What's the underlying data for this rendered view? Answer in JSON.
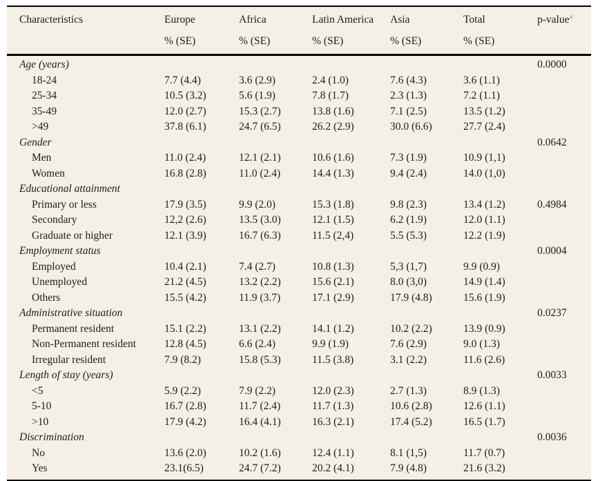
{
  "page": {
    "background": "#ffffff",
    "table_background": "#f5f0e5",
    "text_color": "#1c1c1c",
    "superscript_color": "#4aa3d9"
  },
  "table": {
    "header": {
      "characteristics": "Characteristics",
      "columns": [
        {
          "name": "Europe",
          "sub": "% (SE)"
        },
        {
          "name": "Africa",
          "sub": "% (SE)"
        },
        {
          "name": "Latin America",
          "sub": "% (SE)"
        },
        {
          "name": "Asia",
          "sub": "% (SE)"
        },
        {
          "name": "Total",
          "sub": "% (SE)"
        }
      ],
      "p_value": {
        "label": "p-value",
        "superscript": "a"
      }
    },
    "rows": [
      {
        "type": "category",
        "label": "Age (years)",
        "values": [
          "",
          "",
          "",
          "",
          ""
        ],
        "p": "0.0000"
      },
      {
        "type": "item",
        "label": "18-24",
        "values": [
          "7.7 (4.4)",
          "3.6 (2.9)",
          "2.4 (1.0)",
          "7.6 (4.3)",
          "3.6 (1.1)"
        ],
        "p": ""
      },
      {
        "type": "item",
        "label": "25-34",
        "values": [
          "10.5 (3.2)",
          "5.6 (1.9)",
          "7.8 (1.7)",
          "2.3 (1.3)",
          "7.2 (1.1)"
        ],
        "p": ""
      },
      {
        "type": "item",
        "label": "35-49",
        "values": [
          "12.0 (2.7)",
          "15.3 (2.7)",
          "13.8 (1.6)",
          "7.1 (2.5)",
          "13.5 (1.2)"
        ],
        "p": ""
      },
      {
        "type": "item",
        "label": ">49",
        "values": [
          "37.8 (6.1)",
          "24.7 (6.5)",
          "26.2 (2.9)",
          "30.0 (6.6)",
          "27.7 (2.4)"
        ],
        "p": ""
      },
      {
        "type": "category",
        "label": "Gender",
        "values": [
          "",
          "",
          "",
          "",
          ""
        ],
        "p": "0.0642"
      },
      {
        "type": "item",
        "label": "Men",
        "values": [
          "11.0 (2.4)",
          "12.1 (2.1)",
          "10.6 (1.6)",
          "7.3 (1.9)",
          "10.9 (1,1)"
        ],
        "p": ""
      },
      {
        "type": "item",
        "label": "Women",
        "values": [
          "16.8 (2.8)",
          "11.0 (2.4)",
          "14.4 (1.3)",
          "9.4 (2.4)",
          "14.0 (1,0)"
        ],
        "p": ""
      },
      {
        "type": "category",
        "label": "Educational attainment",
        "values": [
          "",
          "",
          "",
          "",
          ""
        ],
        "p": ""
      },
      {
        "type": "item",
        "label": "Primary or less",
        "values": [
          "17.9 (3.5)",
          "9.9 (2.0)",
          "15.3 (1.8)",
          "9.8 (2.3)",
          "13.4 (1.2)"
        ],
        "p": "0.4984"
      },
      {
        "type": "item",
        "label": "Secondary",
        "values": [
          "12,2 (2.6)",
          "13.5 (3.0)",
          "12.1 (1.5)",
          "6.2 (1.9)",
          "12.0 (1.1)"
        ],
        "p": ""
      },
      {
        "type": "item",
        "label": "Graduate or higher",
        "values": [
          "12.1 (3.9)",
          "16.7 (6.3)",
          "11.5 (2,4)",
          "5.5 (5.3)",
          "12.2 (1.9)"
        ],
        "p": ""
      },
      {
        "type": "category",
        "label": "Employment status",
        "values": [
          "",
          "",
          "",
          "",
          ""
        ],
        "p": "0.0004"
      },
      {
        "type": "item",
        "label": "Employed",
        "values": [
          "10.4 (2.1)",
          "7.4 (2.7)",
          "10.8 (1.3)",
          "5,3 (1,7)",
          "9.9 (0.9)"
        ],
        "p": ""
      },
      {
        "type": "item",
        "label": "Unemployed",
        "values": [
          "21.2 (4.5)",
          "13.2 (2.2)",
          "15.6 (2.1)",
          "8.0 (3,0)",
          "14.9 (1.4)"
        ],
        "p": ""
      },
      {
        "type": "item",
        "label": "Others",
        "values": [
          "15.5 (4.2)",
          "11.9 (3.7)",
          "17.1 (2.9)",
          "17.9 (4.8)",
          "15.6 (1.9)"
        ],
        "p": ""
      },
      {
        "type": "category",
        "label": "Administrative situation",
        "values": [
          "",
          "",
          "",
          "",
          ""
        ],
        "p": "0.0237"
      },
      {
        "type": "item",
        "label": "Permanent resident",
        "values": [
          "15.1 (2.2)",
          "13.1 (2.2)",
          "14.1 (1.2)",
          "10.2 (2.2)",
          "13.9 (0.9)"
        ],
        "p": ""
      },
      {
        "type": "item",
        "label": "Non-Permanent resident",
        "values": [
          "12.8 (4.5)",
          "6.6 (2.4)",
          "9.9 (1.9)",
          "7.6 (2.9)",
          "9.0 (1.3)"
        ],
        "p": ""
      },
      {
        "type": "item",
        "label": "Irregular resident",
        "values": [
          "7.9 (8.2)",
          "15.8 (5.3)",
          "11.5 (3.8)",
          "3.1 (2.2)",
          "11.6 (2.6)"
        ],
        "p": ""
      },
      {
        "type": "category",
        "label": "Length of stay (years)",
        "values": [
          "",
          "",
          "",
          "",
          ""
        ],
        "p": "0.0033"
      },
      {
        "type": "item",
        "label": "<5",
        "values": [
          "5.9 (2.2)",
          "7.9 (2.2)",
          "12.0 (2.3)",
          "2.7 (1.3)",
          "8.9 (1.3)"
        ],
        "p": ""
      },
      {
        "type": "item",
        "label": "5-10",
        "values": [
          "16.7 (2.8)",
          "11.7 (2.4)",
          "11.7 (1.3)",
          "10.6 (2.8)",
          "12.6 (1.1)"
        ],
        "p": ""
      },
      {
        "type": "item",
        "label": ">10",
        "values": [
          "17.9 (4.2)",
          "16.4 (4.1)",
          "16.3 (2.1)",
          "17.4 (5.2)",
          "16.5 (1.7)"
        ],
        "p": ""
      },
      {
        "type": "category",
        "label": "Discrimination",
        "values": [
          "",
          "",
          "",
          "",
          ""
        ],
        "p": "0.0036"
      },
      {
        "type": "item",
        "label": "No",
        "values": [
          "13.6 (2.0)",
          "10.2 (1.6)",
          "12.4 (1.1)",
          "8.1 (1,5)",
          "11.7 (0.7)"
        ],
        "p": ""
      },
      {
        "type": "item",
        "label": "Yes",
        "values": [
          "23.1(6.5)",
          "24.7 (7.2)",
          "20.2 (4.1)",
          "7.9 (4.8)",
          "21.6 (3.2)"
        ],
        "p": ""
      }
    ]
  }
}
